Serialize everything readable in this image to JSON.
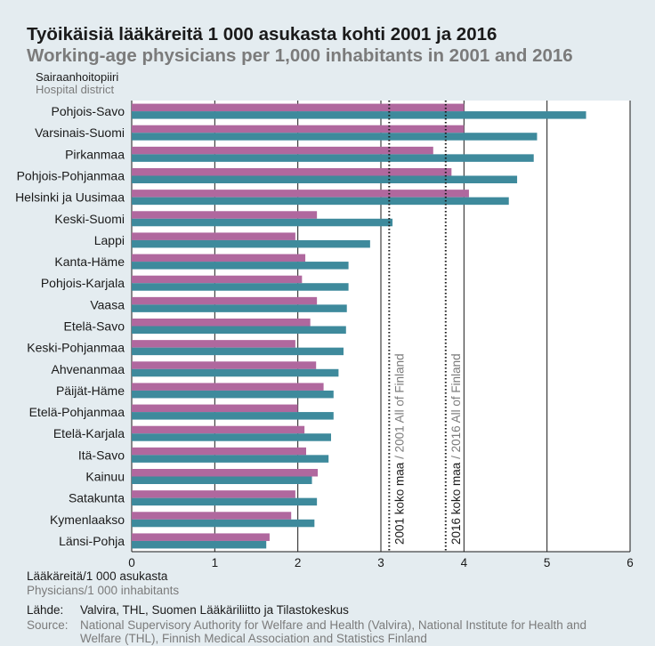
{
  "title": "Työikäisiä lääkäreitä 1 000 asukasta kohti 2001 ja 2016",
  "subtitle": "Working-age physicians per 1,000 inhabitants in 2001 and 2016",
  "category_axis": {
    "label_fi": "Sairaanhoitopiiri",
    "label_en": "Hospital district"
  },
  "value_axis": {
    "label_fi": "Lääkäreitä/1 000 asukasta",
    "label_en": "Physicians/1 000 inhabitants"
  },
  "source": {
    "label_fi": "Lähde:",
    "text_fi": "Valvira, THL, Suomen Lääkäriliitto ja Tilastokeskus",
    "label_en": "Source:",
    "text_en": "National Supervisory Authority for Welfare and Health (Valvira), National Institute for Health and Welfare (THL), Finnish Medical Association and Statistics Finland"
  },
  "colors": {
    "series_2016": "#b0689e",
    "series_2001": "#3e8a9c",
    "background": "#e4ecf0"
  },
  "chart_data": {
    "type": "bar",
    "orientation": "horizontal",
    "categories": [
      "Pohjois-Savo",
      "Varsinais-Suomi",
      "Pirkanmaa",
      "Pohjois-Pohjanmaa",
      "Helsinki ja Uusimaa",
      "Keski-Suomi",
      "Lappi",
      "Kanta-Häme",
      "Pohjois-Karjala",
      "Vaasa",
      "Etelä-Savo",
      "Keski-Pohjanmaa",
      "Ahvenanmaa",
      "Päijät-Häme",
      "Etelä-Pohjanmaa",
      "Etelä-Karjala",
      "Itä-Savo",
      "Kainuu",
      "Satakunta",
      "Kymenlaakso",
      "Länsi-Pohja"
    ],
    "series": [
      {
        "key": "2016",
        "values": [
          5.47,
          4.88,
          4.84,
          4.64,
          4.54,
          3.14,
          2.87,
          2.61,
          2.61,
          2.59,
          2.58,
          2.55,
          2.49,
          2.43,
          2.43,
          2.4,
          2.37,
          2.17,
          2.23,
          2.2,
          1.62
        ]
      },
      {
        "key": "2001",
        "values": [
          4.0,
          4.0,
          3.63,
          3.85,
          4.06,
          2.23,
          1.97,
          2.09,
          2.05,
          2.23,
          2.15,
          1.97,
          2.22,
          2.31,
          2.0,
          2.08,
          2.1,
          2.24,
          1.97,
          1.92,
          1.66
        ]
      }
    ],
    "reference_lines": [
      {
        "value": 3.1,
        "label": "2001 koko maa / 2001 All of Finland"
      },
      {
        "value": 3.78,
        "label": "2016 koko maa / 2016 All of Finland"
      }
    ],
    "xlim": [
      0,
      6
    ],
    "xticks": [
      "0",
      "1",
      "2",
      "3",
      "4",
      "5",
      "6"
    ],
    "grid": true
  }
}
